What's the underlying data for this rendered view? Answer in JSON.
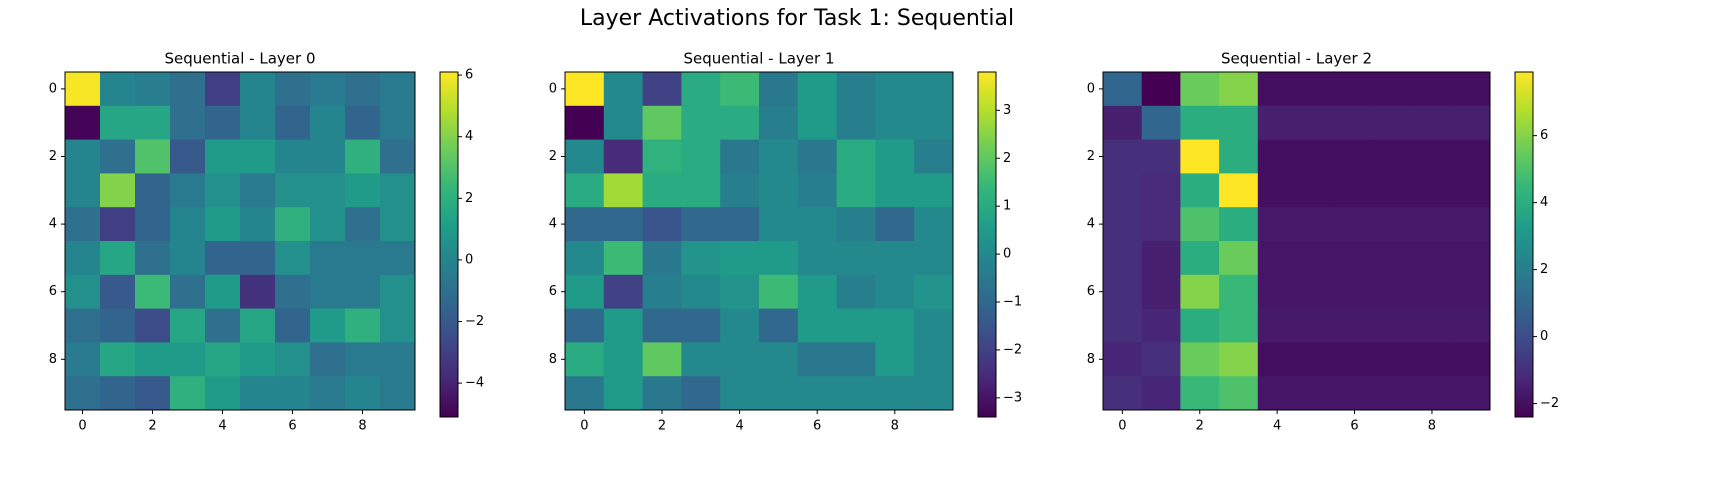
{
  "title": "Layer Activations for Task 1: Sequential",
  "chart_data": [
    {
      "type": "heatmap",
      "title": "Sequential - Layer 0",
      "colormap": "viridis",
      "xlim": [
        -0.5,
        9.5
      ],
      "ylim": [
        9.5,
        -0.5
      ],
      "xticks": [
        0,
        2,
        4,
        6,
        8
      ],
      "yticks": [
        0,
        2,
        4,
        6,
        8
      ],
      "z": [
        [
          6,
          0,
          -0.3,
          -1,
          -3,
          0,
          -1,
          -0.5,
          -1,
          -0.5
        ],
        [
          -5,
          1.5,
          1.5,
          -1,
          -1.5,
          0,
          -1.5,
          0,
          -1.5,
          -0.5
        ],
        [
          0,
          -1,
          3,
          -2,
          1,
          1,
          0,
          0,
          2,
          -1
        ],
        [
          0,
          4,
          -1.5,
          -0.5,
          0.5,
          -0.5,
          0.5,
          0.5,
          1,
          0.5
        ],
        [
          -1,
          -3,
          -1.5,
          0,
          1,
          0,
          2,
          0.5,
          -1,
          0.5
        ],
        [
          0,
          1.5,
          -1,
          0,
          -1.5,
          -1.5,
          0.5,
          -0.5,
          -0.5,
          -0.5
        ],
        [
          0.5,
          -2,
          2.5,
          -1,
          1,
          -3.5,
          -1,
          -0.5,
          -0.5,
          0.5
        ],
        [
          -1,
          -1.5,
          -2.5,
          1.5,
          -1,
          1.5,
          -1.5,
          1,
          2,
          0.5
        ],
        [
          -0.5,
          1.5,
          1,
          1,
          1.5,
          1,
          0.5,
          -1,
          -0.5,
          -0.5
        ],
        [
          -1,
          -1.5,
          -2,
          2,
          1,
          0,
          0,
          -0.5,
          0,
          -0.5
        ]
      ],
      "clim": [
        -5.1,
        6.1
      ],
      "cticks": [
        {
          "value": -4,
          "label": "−4"
        },
        {
          "value": -2,
          "label": "−2"
        },
        0,
        2,
        4,
        6
      ]
    },
    {
      "type": "heatmap",
      "title": "Sequential - Layer 1",
      "colormap": "viridis",
      "xlim": [
        -0.5,
        9.5
      ],
      "ylim": [
        9.5,
        -0.5
      ],
      "xticks": [
        0,
        2,
        4,
        6,
        8
      ],
      "yticks": [
        0,
        2,
        4,
        6,
        8
      ],
      "z": [
        [
          3.8,
          0,
          -2,
          1,
          1.5,
          -0.5,
          0.5,
          -0.3,
          0,
          0
        ],
        [
          -3.4,
          0,
          2,
          1,
          1,
          -0.3,
          0.5,
          -0.3,
          0,
          0
        ],
        [
          0,
          -2.5,
          1.2,
          1,
          -0.5,
          0,
          -0.5,
          1,
          0.5,
          -0.3
        ],
        [
          1,
          2.8,
          1,
          1,
          -0.3,
          0,
          -0.3,
          1,
          0.5,
          0.5
        ],
        [
          -1,
          -1,
          -1.5,
          -1,
          -1,
          0,
          0,
          -0.3,
          -1,
          0
        ],
        [
          0,
          1.5,
          -0.5,
          0.3,
          0.5,
          0.5,
          0,
          0,
          0,
          0
        ],
        [
          0.5,
          -2,
          -0.3,
          0,
          0.3,
          1.5,
          0.5,
          -0.3,
          0,
          0.3
        ],
        [
          -1,
          0.5,
          -1,
          -1,
          0,
          -1,
          0.5,
          0.5,
          0.5,
          0
        ],
        [
          1,
          0.5,
          2,
          0,
          0,
          0,
          -0.5,
          -0.5,
          0.5,
          0
        ],
        [
          -0.5,
          0.5,
          -0.5,
          -1,
          0,
          0,
          0,
          0,
          0,
          0
        ]
      ],
      "clim": [
        -3.4,
        3.8
      ],
      "cticks": [
        {
          "value": -3,
          "label": "−3"
        },
        {
          "value": -2,
          "label": "−2"
        },
        {
          "value": -1,
          "label": "−1"
        },
        0,
        1,
        2,
        3
      ]
    },
    {
      "type": "heatmap",
      "title": "Sequential - Layer 2",
      "colormap": "viridis",
      "xlim": [
        -0.5,
        9.5
      ],
      "ylim": [
        9.5,
        -0.5
      ],
      "xticks": [
        0,
        2,
        4,
        6,
        8
      ],
      "yticks": [
        0,
        2,
        4,
        6,
        8
      ],
      "z": [
        [
          1,
          -2.4,
          5.5,
          6,
          -2,
          -2,
          -2,
          -2,
          -2,
          -2
        ],
        [
          -1.5,
          1,
          4,
          4,
          -1.5,
          -1.5,
          -1.5,
          -1.5,
          -1.5,
          -1.5
        ],
        [
          -1,
          -1,
          7.9,
          4,
          -2,
          -2,
          -2,
          -2,
          -2,
          -2
        ],
        [
          -1,
          -1.2,
          4,
          7.9,
          -2,
          -2,
          -2,
          -2,
          -2,
          -2
        ],
        [
          -1,
          -1.2,
          5,
          4,
          -1.7,
          -1.7,
          -1.7,
          -1.7,
          -1.7,
          -1.7
        ],
        [
          -1,
          -1.5,
          4,
          5.5,
          -1.8,
          -1.8,
          -1.8,
          -1.8,
          -1.8,
          -1.8
        ],
        [
          -1,
          -1.5,
          6,
          4.5,
          -1.8,
          -1.8,
          -1.8,
          -1.8,
          -1.8,
          -1.8
        ],
        [
          -1,
          -1.3,
          4,
          4.5,
          -1.7,
          -1.7,
          -1.7,
          -1.7,
          -1.7,
          -1.7
        ],
        [
          -1.3,
          -1,
          5.5,
          6,
          -2,
          -2,
          -2,
          -2,
          -2,
          -2
        ],
        [
          -1,
          -1.3,
          4.5,
          5,
          -1.8,
          -1.8,
          -1.8,
          -1.8,
          -1.8,
          -1.8
        ]
      ],
      "clim": [
        -2.4,
        7.9
      ],
      "cticks": [
        {
          "value": -2,
          "label": "−2"
        },
        0,
        2,
        4,
        6
      ]
    }
  ]
}
